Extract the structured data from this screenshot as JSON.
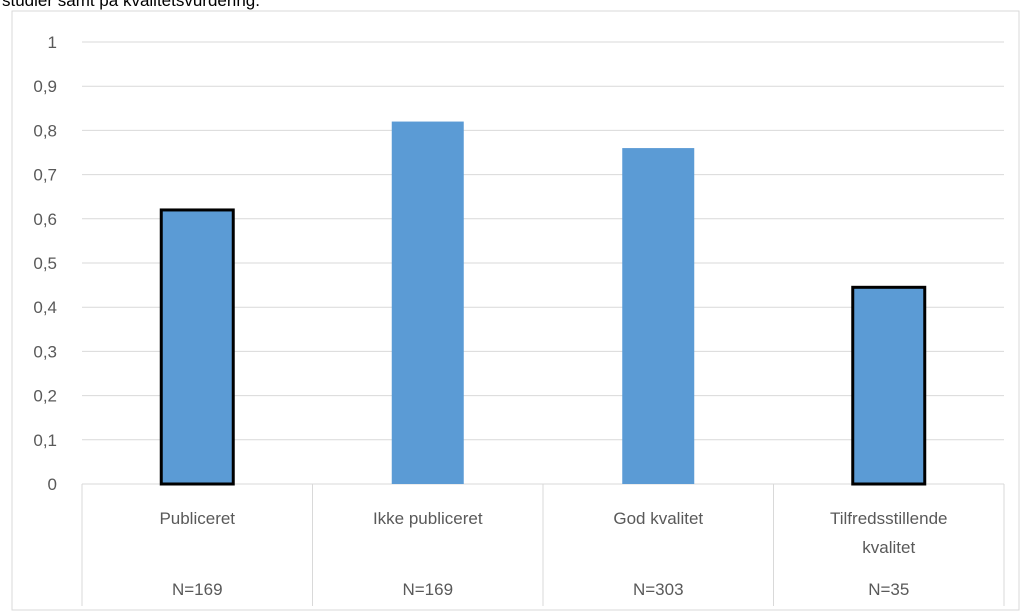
{
  "caption": {
    "text": "studier samt på kvalitetsvurdering."
  },
  "colors": {
    "bar_fill": "#5b9bd5",
    "bar_outline": "#000000",
    "gridline": "#d9d9d9",
    "tick_text": "#595959"
  },
  "chart_data": {
    "type": "bar",
    "title": "",
    "xlabel": "",
    "ylabel": "",
    "ylim": [
      0,
      1
    ],
    "yticks": [
      "0",
      "0,1",
      "0,2",
      "0,3",
      "0,4",
      "0,5",
      "0,6",
      "0,7",
      "0,8",
      "0,9",
      "1"
    ],
    "grid": true,
    "legend": "none",
    "categories": [
      {
        "label": [
          "Publiceret"
        ],
        "n": "N=169",
        "value": 0.62,
        "outlined": true
      },
      {
        "label": [
          "Ikke publiceret"
        ],
        "n": "N=169",
        "value": 0.82,
        "outlined": false
      },
      {
        "label": [
          "God kvalitet"
        ],
        "n": "N=303",
        "value": 0.76,
        "outlined": false
      },
      {
        "label": [
          "Tilfredsstillende",
          "kvalitet"
        ],
        "n": "N=35",
        "value": 0.445,
        "outlined": true
      }
    ]
  }
}
